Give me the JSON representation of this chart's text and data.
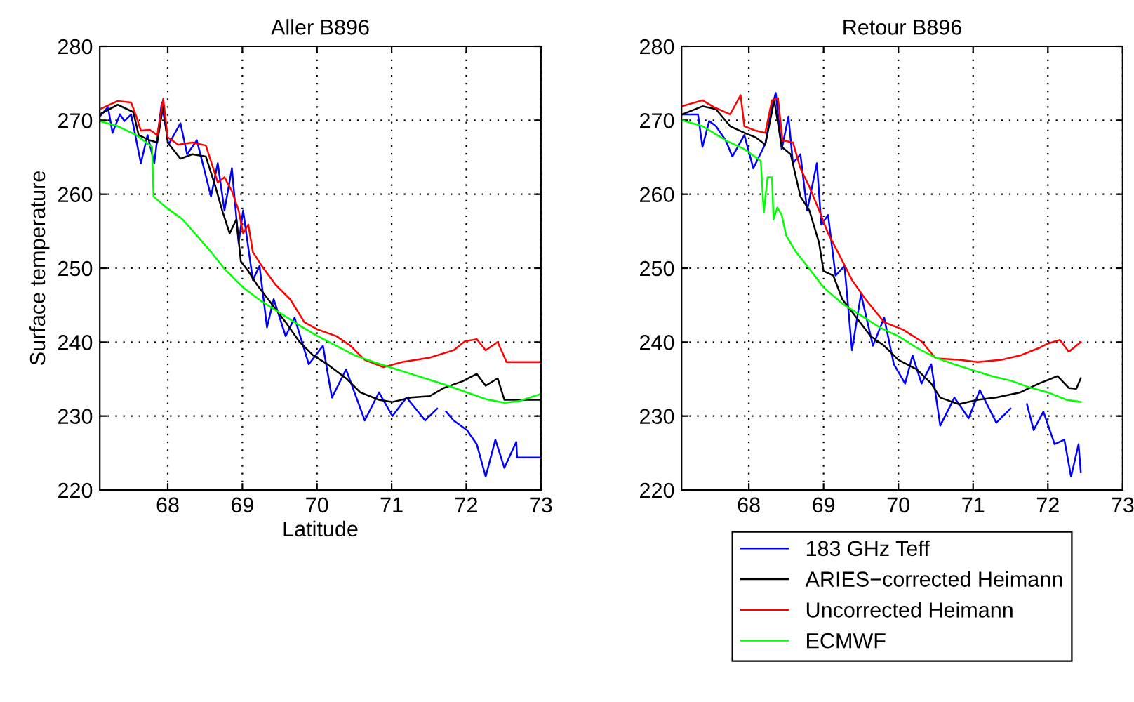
{
  "chart_data": [
    {
      "type": "line",
      "title": "Aller B896",
      "xlabel": "Latitude",
      "ylabel": "Surface temperature",
      "xlim": [
        67.09,
        73
      ],
      "ylim": [
        220,
        280
      ],
      "xticks": [
        68,
        69,
        70,
        71,
        72,
        73
      ],
      "yticks": [
        220,
        230,
        240,
        250,
        260,
        270,
        280
      ],
      "grid": true,
      "legend": false,
      "series": [
        {
          "color": "#0000ff",
          "x": [
            67.09,
            67.2,
            67.26,
            67.36,
            67.42,
            67.51,
            67.64,
            67.73,
            67.82,
            67.92,
            68.01,
            68.17,
            68.26,
            68.39,
            68.58,
            68.67,
            68.76,
            68.86,
            68.95,
            69.01,
            69.14,
            69.23,
            69.33,
            69.42,
            69.58,
            69.7,
            69.89,
            70.08,
            70.2,
            70.39,
            70.64,
            70.83,
            71.01,
            71.2,
            71.45,
            71.61,
            71.67,
            71.73,
            71.83,
            72.01,
            72.14,
            72.26,
            72.39,
            72.51,
            72.67,
            72.68,
            73.0
          ],
          "values": [
            270.5,
            271.8,
            268.3,
            270.8,
            269.9,
            270.8,
            264.2,
            268,
            264.2,
            272.4,
            266.7,
            269.6,
            265.4,
            267.3,
            259.7,
            264.2,
            257.8,
            263.5,
            253.4,
            257.8,
            248.4,
            250.3,
            242,
            245.8,
            240.8,
            243.3,
            237,
            239.5,
            232.5,
            236.3,
            229.4,
            233.2,
            230,
            232.5,
            229.4,
            231,
            null,
            230.6,
            229.4,
            228.1,
            226.2,
            221.8,
            226.8,
            223,
            226.5,
            224.4,
            224.4
          ]
        },
        {
          "color": "#000000",
          "x": [
            67.09,
            67.33,
            67.54,
            67.61,
            67.76,
            67.86,
            67.94,
            68.0,
            68.17,
            68.33,
            68.51,
            68.64,
            68.73,
            68.83,
            68.92,
            68.98,
            69.08,
            69.2,
            69.39,
            69.58,
            69.76,
            69.95,
            70.14,
            70.39,
            70.58,
            70.83,
            71.01,
            71.26,
            71.51,
            71.7,
            71.95,
            72.14,
            72.26,
            72.42,
            72.51,
            73.0
          ],
          "values": [
            270.8,
            272.1,
            271.1,
            268,
            267.3,
            267,
            272.1,
            267,
            264.8,
            265.4,
            265.1,
            261,
            257.8,
            254.7,
            256.6,
            250.9,
            249.6,
            247.7,
            245.2,
            242.7,
            240.1,
            238.2,
            237,
            235.1,
            233.2,
            232.2,
            231.9,
            232.5,
            232.7,
            233.8,
            234.7,
            235.7,
            234.1,
            235.1,
            232.2,
            232.2
          ]
        },
        {
          "color": "#ff0000",
          "x": [
            67.09,
            67.33,
            67.51,
            67.58,
            67.64,
            67.76,
            67.86,
            67.94,
            68.0,
            68.14,
            68.33,
            68.51,
            68.61,
            68.67,
            68.76,
            68.86,
            68.95,
            69.01,
            69.08,
            69.14,
            69.26,
            69.45,
            69.64,
            69.83,
            70.01,
            70.26,
            70.45,
            70.64,
            70.89,
            71.14,
            71.51,
            71.83,
            71.98,
            72.14,
            72.26,
            72.42,
            72.54,
            73.0
          ],
          "values": [
            271.5,
            272.6,
            272.4,
            270.5,
            268.6,
            268.7,
            268,
            272.9,
            267.7,
            266.7,
            267,
            266.6,
            263.5,
            261.6,
            262.3,
            260.4,
            257.8,
            254.7,
            255.9,
            252.2,
            250.3,
            247.7,
            245.8,
            242.7,
            241.7,
            240.8,
            239.5,
            237.6,
            236.6,
            237.3,
            237.9,
            238.9,
            240.1,
            240.4,
            238.9,
            240,
            237.3,
            237.3
          ]
        },
        {
          "color": "#00ff00",
          "x": [
            67.09,
            67.33,
            67.58,
            67.79,
            67.81,
            67.98,
            68.2,
            68.39,
            68.58,
            68.76,
            69.01,
            69.26,
            69.51,
            69.76,
            70.01,
            70.26,
            70.51,
            70.76,
            71.01,
            71.26,
            71.51,
            71.76,
            72.01,
            72.26,
            72.51,
            72.7,
            73.0
          ],
          "values": [
            269.9,
            269.2,
            268,
            266.4,
            259.7,
            258.2,
            256.6,
            254.4,
            252.2,
            249.9,
            247.4,
            245.5,
            243.9,
            242.3,
            240.8,
            239.5,
            238.2,
            237.3,
            236.5,
            235.7,
            234.9,
            234.1,
            233.2,
            232.3,
            231.8,
            232,
            233
          ]
        }
      ]
    },
    {
      "type": "line",
      "title": "Retour B896",
      "xlim": [
        67.1,
        73
      ],
      "ylim": [
        220,
        280
      ],
      "xticks": [
        68,
        69,
        70,
        71,
        72,
        73
      ],
      "yticks": [
        220,
        230,
        240,
        250,
        260,
        270,
        280
      ],
      "grid": true,
      "legend": "bottom",
      "series": [
        {
          "name": "183 GHz Teff",
          "color": "#0000ff",
          "x": [
            67.11,
            67.32,
            67.38,
            67.47,
            67.56,
            67.69,
            67.78,
            67.94,
            68.06,
            68.22,
            68.31,
            68.36,
            68.44,
            68.53,
            68.59,
            68.69,
            68.78,
            68.91,
            68.97,
            69.06,
            69.16,
            69.28,
            69.38,
            69.5,
            69.66,
            69.81,
            69.94,
            70.09,
            70.19,
            70.31,
            70.44,
            70.56,
            70.75,
            70.94,
            71.09,
            71.31,
            71.5,
            71.6,
            71.72,
            71.81,
            71.94,
            72.09,
            72.22,
            72.31,
            72.41,
            72.44
          ],
          "values": [
            270.8,
            270.8,
            266.4,
            269.9,
            269.2,
            267.3,
            265.1,
            268,
            263.5,
            266.8,
            271.8,
            273.7,
            266.1,
            270.5,
            264.2,
            265.4,
            257.8,
            264.2,
            255.9,
            257.2,
            249,
            250.3,
            238.9,
            246.5,
            239.5,
            243.3,
            237,
            234.4,
            238.2,
            234.4,
            237,
            228.7,
            232.5,
            229.7,
            233.5,
            229.1,
            231,
            null,
            231.6,
            228.1,
            230.6,
            226.2,
            226.8,
            221.8,
            226.2,
            222.4
          ]
        },
        {
          "name": "ARIES−corrected Heimann",
          "color": "#000000",
          "x": [
            67.11,
            67.38,
            67.56,
            67.75,
            67.94,
            68.09,
            68.22,
            68.34,
            68.44,
            68.56,
            68.69,
            68.81,
            68.94,
            69.0,
            69.13,
            69.25,
            69.44,
            69.63,
            69.81,
            70.0,
            70.25,
            70.44,
            70.56,
            70.81,
            71.06,
            71.31,
            71.63,
            71.88,
            72.13,
            72.28,
            72.38,
            72.44
          ],
          "values": [
            270.8,
            271.9,
            271.5,
            269.2,
            268.3,
            267.7,
            266.7,
            272.7,
            266.4,
            265.4,
            259.7,
            257.8,
            253.4,
            249.6,
            249,
            245.8,
            243.3,
            240.8,
            239.5,
            237.6,
            236.3,
            234.4,
            232.5,
            231.6,
            232.2,
            232.5,
            233.2,
            234.4,
            235.4,
            233.8,
            233.7,
            235.1
          ]
        },
        {
          "name": "Uncorrected Heimann",
          "color": "#ff0000",
          "x": [
            67.11,
            67.38,
            67.53,
            67.75,
            67.89,
            67.94,
            68.09,
            68.22,
            68.31,
            68.39,
            68.45,
            68.59,
            68.69,
            68.81,
            68.94,
            69.06,
            69.19,
            69.38,
            69.56,
            69.81,
            70.06,
            70.31,
            70.5,
            70.81,
            71.06,
            71.38,
            71.63,
            71.88,
            72.0,
            72.16,
            72.28,
            72.44
          ],
          "values": [
            271.9,
            272.7,
            271.8,
            270.8,
            273.4,
            269.2,
            268.6,
            268.3,
            272.7,
            273,
            267.3,
            267,
            263.5,
            261,
            257.8,
            254.7,
            252.2,
            248.4,
            245.8,
            242.7,
            241.7,
            240.1,
            237.8,
            237.6,
            237.3,
            237.6,
            238.2,
            239.2,
            239.8,
            240.3,
            238.7,
            240
          ]
        },
        {
          "name": "ECMWF",
          "color": "#00ff00",
          "x": [
            67.11,
            67.38,
            67.69,
            67.94,
            68.16,
            68.2,
            68.25,
            68.31,
            68.33,
            68.38,
            68.44,
            68.5,
            68.63,
            68.81,
            69.0,
            69.25,
            69.5,
            69.75,
            70.0,
            70.25,
            70.5,
            70.75,
            71.0,
            71.25,
            71.5,
            71.75,
            72.0,
            72.25,
            72.44
          ],
          "values": [
            270,
            269.2,
            267.3,
            266.1,
            264.5,
            257.5,
            262.3,
            262.3,
            256.6,
            258.2,
            257.2,
            254.4,
            252.2,
            249.9,
            247.4,
            245.2,
            243.6,
            242,
            240.8,
            239.2,
            237.9,
            237,
            236.2,
            235.4,
            234.8,
            233.9,
            233.2,
            232.2,
            231.9
          ]
        }
      ]
    }
  ]
}
